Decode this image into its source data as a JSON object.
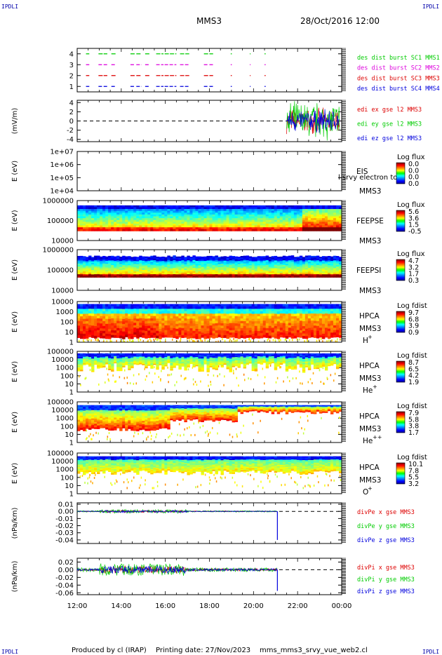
{
  "header": {
    "corner_left": "IPDLI",
    "corner_right": "IPDLI",
    "mission": "MMS3",
    "datetime": "28/Oct/2016 12:00"
  },
  "footer": {
    "corner_left": "IPDLI",
    "corner_right": "IPDLI",
    "produced_by": "Produced by cl (IRAP)",
    "printing_date": "Printing date: 27/Nov/2023",
    "filename": "mms_mms3_srvy_vue_web2.cl"
  },
  "colors": {
    "red": "#dd0000",
    "green": "#00cc00",
    "blue": "#0000dd",
    "magenta": "#dd00dd",
    "black": "#000000"
  },
  "chart_data": [
    {
      "id": "burst",
      "type": "scatter",
      "x_range": [
        "12:00",
        "00:00"
      ],
      "ylim": [
        0.5,
        4.5
      ],
      "yticks": [
        "1",
        "2",
        "3",
        "4"
      ],
      "series": [
        {
          "name": "des dist burst SC1 MMS1",
          "y": 4,
          "color": "#00cc00",
          "segments": [
            [
              "12:24",
              "12:33"
            ],
            [
              "12:58",
              "13:10"
            ],
            [
              "13:12",
              "13:22"
            ],
            [
              "13:33",
              "13:45"
            ],
            [
              "14:25",
              "14:38"
            ],
            [
              "14:41",
              "14:55"
            ],
            [
              "15:05",
              "15:18"
            ],
            [
              "15:35",
              "15:55"
            ],
            [
              "15:58",
              "16:30"
            ],
            [
              "16:40",
              "17:05"
            ],
            [
              "17:45",
              "17:58"
            ],
            [
              "18:00",
              "18:10"
            ],
            [
              "18:58",
              "19:01"
            ],
            [
              "19:50",
              "19:52"
            ],
            [
              "20:30",
              "20:33"
            ]
          ]
        },
        {
          "name": "des dist burst SC2 MMS2",
          "y": 3,
          "color": "#dd00dd"
        },
        {
          "name": "des dist burst SC3 MMS3",
          "y": 2,
          "color": "#dd0000"
        },
        {
          "name": "des dist burst SC4 MMS4",
          "y": 1,
          "color": "#0000dd"
        }
      ]
    },
    {
      "id": "edi",
      "type": "line",
      "ylabel": "(mV/m)",
      "ylim": [
        -4.5,
        4.5
      ],
      "yticks": [
        "4",
        "2",
        "0",
        "-2",
        "-4"
      ],
      "data_start": "21:30",
      "series": [
        {
          "name": "edi ex gse l2 MMS3",
          "color": "#dd0000"
        },
        {
          "name": "edi ey gse l2 MMS3",
          "color": "#00cc00"
        },
        {
          "name": "edi ez gse l2 MMS3",
          "color": "#0000dd"
        }
      ]
    },
    {
      "id": "eis",
      "type": "heatmap",
      "ylabel": "E (eV)",
      "yticks": [
        "1e+07",
        "1e+06",
        "1e+05",
        "1e+04"
      ],
      "instrument": "EIS",
      "spacecraft": "MMS3",
      "overlay_text": "l srvy electron to",
      "colorbar_title": "Log flux",
      "colorbar_ticks": [
        "0.0",
        "0.0",
        "0.0",
        "0.0"
      ]
    },
    {
      "id": "feepse",
      "type": "heatmap",
      "ylabel": "E (eV)",
      "yticks": [
        "1000000",
        "100000",
        "10000"
      ],
      "instrument": "FEEPSE",
      "spacecraft": "MMS3",
      "colorbar_title": "Log flux",
      "colorbar_ticks": [
        "5.6",
        "3.6",
        "1.5",
        "-0.5"
      ]
    },
    {
      "id": "feepsi",
      "type": "heatmap",
      "ylabel": "E (eV)",
      "yticks": [
        "1000000",
        "100000",
        "10000"
      ],
      "instrument": "FEEPSI",
      "spacecraft": "MMS3",
      "colorbar_title": "Log flux",
      "colorbar_ticks": [
        "4.7",
        "3.2",
        "1.7",
        "0.3"
      ]
    },
    {
      "id": "hpca_h",
      "type": "heatmap",
      "ylabel": "E (eV)",
      "yticks": [
        "10000",
        "1000",
        "100",
        "10",
        "1"
      ],
      "instrument": "HPCA",
      "spacecraft": "MMS3",
      "species": "H",
      "charge": "+",
      "colorbar_title": "Log fdist",
      "colorbar_ticks": [
        "9.7",
        "6.8",
        "3.9",
        "0.9"
      ]
    },
    {
      "id": "hpca_he1",
      "type": "heatmap",
      "ylabel": "E (eV)",
      "yticks": [
        "100000",
        "10000",
        "1000",
        "100",
        "10",
        "1"
      ],
      "instrument": "HPCA",
      "spacecraft": "MMS3",
      "species": "He",
      "charge": "+",
      "colorbar_title": "Log fdist",
      "colorbar_ticks": [
        "8.7",
        "6.5",
        "4.2",
        "1.9"
      ]
    },
    {
      "id": "hpca_he2",
      "type": "heatmap",
      "ylabel": "E (eV)",
      "yticks": [
        "100000",
        "10000",
        "1000",
        "100",
        "10",
        "1"
      ],
      "instrument": "HPCA",
      "spacecraft": "MMS3",
      "species": "He",
      "charge": "++",
      "colorbar_title": "Log fdist",
      "colorbar_ticks": [
        "7.9",
        "5.8",
        "3.8",
        "1.7"
      ]
    },
    {
      "id": "hpca_o",
      "type": "heatmap",
      "ylabel": "E (eV)",
      "yticks": [
        "100000",
        "10000",
        "1000",
        "100",
        "10",
        "1"
      ],
      "instrument": "HPCA",
      "spacecraft": "MMS3",
      "species": "O",
      "charge": "+",
      "colorbar_title": "Log fdist",
      "colorbar_ticks": [
        "10.1",
        "7.8",
        "5.5",
        "3.2"
      ]
    },
    {
      "id": "divpe",
      "type": "line",
      "ylabel": "(nPa/km)",
      "ylim": [
        -0.045,
        0.012
      ],
      "yticks": [
        "0.01",
        "0.00",
        "-0.01",
        "-0.02",
        "-0.03",
        "-0.04"
      ],
      "spike": {
        "time": "21:05",
        "value": -0.04
      },
      "series": [
        {
          "name": "divPe x gse MMS3",
          "color": "#dd0000"
        },
        {
          "name": "divPe y gse MMS3",
          "color": "#00cc00"
        },
        {
          "name": "divPe z gse MMS3",
          "color": "#0000dd"
        }
      ]
    },
    {
      "id": "divpi",
      "type": "line",
      "ylabel": "(nPa/km)",
      "ylim": [
        -0.065,
        0.03
      ],
      "yticks": [
        "0.02",
        "0.00",
        "-0.02",
        "-0.04",
        "-0.06"
      ],
      "spike": {
        "time": "21:05",
        "value": -0.055
      },
      "series": [
        {
          "name": "divPi x gse MMS3",
          "color": "#dd0000"
        },
        {
          "name": "divPi y gse MMS3",
          "color": "#00cc00"
        },
        {
          "name": "divPi z gse MMS3",
          "color": "#0000dd"
        }
      ]
    }
  ],
  "time_axis": {
    "labels": [
      "12:00",
      "14:00",
      "16:00",
      "18:00",
      "20:00",
      "22:00",
      "00:00"
    ]
  }
}
